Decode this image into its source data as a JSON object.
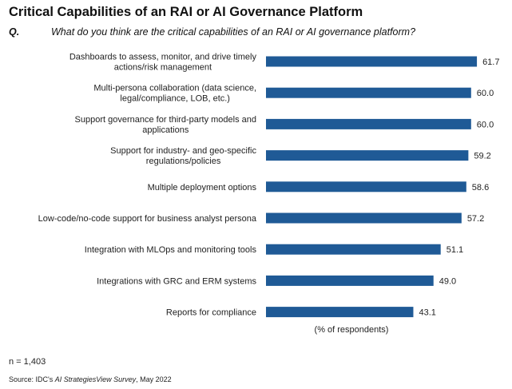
{
  "header": {
    "title": "Critical Capabilities of an RAI or AI Governance Platform",
    "question_marker": "Q.",
    "question_text": "What do you think are the critical capabilities of an RAI or AI governance platform?"
  },
  "footer": {
    "n_note": "n = 1,403",
    "source_prefix": "Source: IDC's ",
    "source_title": "AI StrategiesView Survey",
    "source_suffix": ", May 2022"
  },
  "chart_data": {
    "type": "bar",
    "orientation": "horizontal",
    "categories": [
      [
        "Dashboards to assess, monitor, and drive timely",
        "actions/risk management"
      ],
      [
        "Multi-persona collaboration (data science,",
        "legal/compliance, LOB, etc.)"
      ],
      [
        "Support governance for third-party models and",
        "applications"
      ],
      [
        "Support for industry- and geo-specific",
        "regulations/policies"
      ],
      [
        "Multiple deployment options"
      ],
      [
        "Low-code/no-code support for business analyst persona"
      ],
      [
        "Integration with MLOps and monitoring tools"
      ],
      [
        "Integrations with GRC and ERM systems"
      ],
      [
        "Reports for compliance"
      ]
    ],
    "values": [
      61.7,
      60.0,
      60.0,
      59.2,
      58.6,
      57.2,
      51.1,
      49.0,
      43.1
    ],
    "value_labels": [
      "61.7",
      "60.0",
      "60.0",
      "59.2",
      "58.6",
      "57.2",
      "51.1",
      "49.0",
      "43.1"
    ],
    "xlabel": "(% of respondents)",
    "color": "#1f5a96",
    "grid": false
  }
}
